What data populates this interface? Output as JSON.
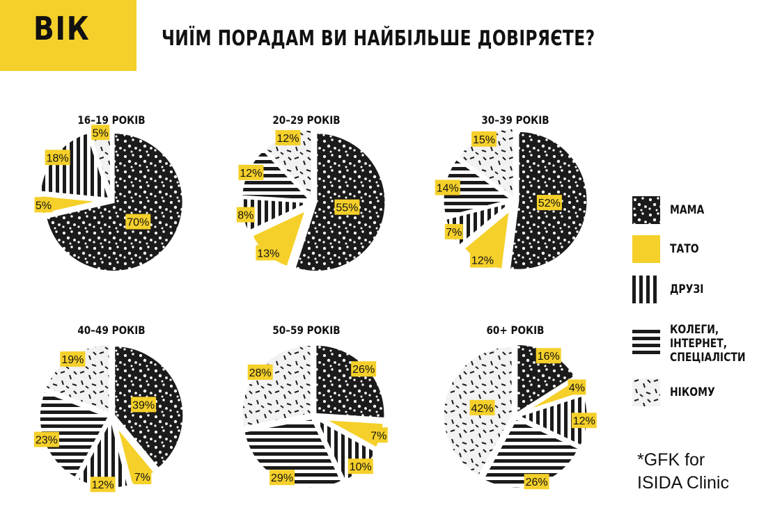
{
  "header": {
    "badge": "ВІК",
    "title": "ЧИЇМ ПОРАДАМ ВИ НАЙБІЛЬШЕ ДОВІРЯЄТЕ?"
  },
  "legend": [
    {
      "key": "mama",
      "label": "МАМА"
    },
    {
      "key": "tato",
      "label": "ТАТО"
    },
    {
      "key": "druzi",
      "label": "ДРУЗІ"
    },
    {
      "key": "koleghy",
      "label": "КОЛЕГИ,\nІНТЕРНЕТ,\nСПЕЦІАЛІСТИ"
    },
    {
      "key": "nikomu",
      "label": "НІКОМУ"
    }
  ],
  "source": "*GFK for\nISIDA Clinic",
  "colors": {
    "accent": "#f5d02a",
    "dark": "#1b1b1b",
    "light": "#f2f2f2"
  },
  "chart_data": [
    {
      "type": "pie",
      "title": "16–19 РОКІВ",
      "categories": [
        "МАМА",
        "ТАТО",
        "ДРУЗІ",
        "КОЛЕГИ, ІНТЕРНЕТ, СПЕЦІАЛІСТИ",
        "НІКОМУ"
      ],
      "values": [
        70,
        5,
        18,
        0,
        5
      ],
      "labels": [
        "70%",
        "5%",
        "18%",
        "",
        "5%"
      ],
      "exploded": "ТАТО"
    },
    {
      "type": "pie",
      "title": "20–29 РОКІВ",
      "categories": [
        "МАМА",
        "ТАТО",
        "ДРУЗІ",
        "КОЛЕГИ, ІНТЕРНЕТ, СПЕЦІАЛІСТИ",
        "НІКОМУ"
      ],
      "values": [
        55,
        13,
        8,
        12,
        12
      ],
      "labels": [
        "55%",
        "13%",
        "8%",
        "12%",
        "12%"
      ],
      "exploded": "ТАТО"
    },
    {
      "type": "pie",
      "title": "30–39 РОКІВ",
      "categories": [
        "МАМА",
        "ТАТО",
        "ДРУЗІ",
        "КОЛЕГИ, ІНТЕРНЕТ, СПЕЦІАЛІСТИ",
        "НІКОМУ"
      ],
      "values": [
        52,
        12,
        7,
        14,
        15
      ],
      "labels": [
        "52%",
        "12%",
        "7%",
        "14%",
        "15%"
      ],
      "exploded": "ТАТО"
    },
    {
      "type": "pie",
      "title": "40–49 РОКІВ",
      "categories": [
        "МАМА",
        "ТАТО",
        "ДРУЗІ",
        "КОЛЕГИ, ІНТЕРНЕТ, СПЕЦІАЛІСТИ",
        "НІКОМУ"
      ],
      "values": [
        39,
        7,
        12,
        23,
        19
      ],
      "labels": [
        "39%",
        "7%",
        "12%",
        "23%",
        "19%"
      ],
      "exploded": "ТАТО"
    },
    {
      "type": "pie",
      "title": "50–59 РОКІВ",
      "categories": [
        "МАМА",
        "ТАТО",
        "ДРУЗІ",
        "КОЛЕГИ, ІНТЕРНЕТ, СПЕЦІАЛІСТИ",
        "НІКОМУ"
      ],
      "values": [
        26,
        7,
        10,
        29,
        28
      ],
      "labels": [
        "26%",
        "7%",
        "10%",
        "29%",
        "28%"
      ],
      "exploded": "ТАТО"
    },
    {
      "type": "pie",
      "title": "60+ РОКІВ",
      "categories": [
        "МАМА",
        "ТАТО",
        "ДРУЗІ",
        "КОЛЕГИ, ІНТЕРНЕТ, СПЕЦІАЛІСТИ",
        "НІКОМУ"
      ],
      "values": [
        16,
        4,
        12,
        26,
        42
      ],
      "labels": [
        "16%",
        "4%",
        "12%",
        "26%",
        "42%"
      ],
      "exploded": "ТАТО"
    }
  ]
}
